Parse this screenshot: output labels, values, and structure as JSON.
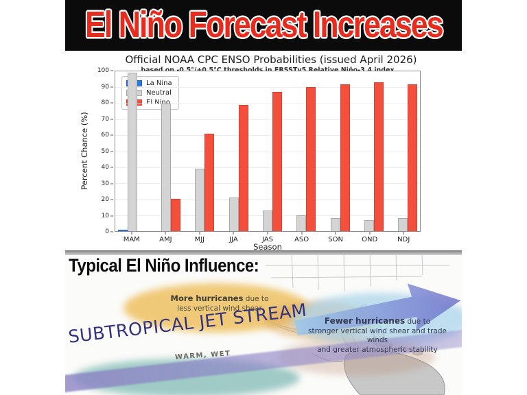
{
  "banner": {
    "title": "El Niño Forecast Increases"
  },
  "colors": {
    "banner_background": "#0b0b0b",
    "banner_red": "#e62c1e",
    "la_nina_blue": "#2b78e8",
    "neutral_gray": "#d4d4d4",
    "el_nino_red": "#f2503c",
    "jet_stream_lavender": "#8a80c4",
    "jet_text_navy": "#32327e",
    "more_hurricanes_blob": "#eec162",
    "fewer_hurricanes_blob": "#a6d2ea",
    "teal_blob": "#55a39c"
  },
  "chart_data": {
    "type": "bar",
    "title": "Official NOAA CPC ENSO Probabilities (issued April 2026)",
    "subtitle": "based on -0.5°/+0.5°C thresholds in ERSSTv5 Relative Niño-3.4 index",
    "xlabel": "Season",
    "ylabel": "Percent Chance (%)",
    "ylim": [
      0,
      100
    ],
    "yticks": [
      0,
      10,
      20,
      30,
      40,
      50,
      60,
      70,
      80,
      90,
      100
    ],
    "grid": "horizontal-faint",
    "legend_position": "upper-left",
    "categories": [
      "MAM",
      "AMJ",
      "MJJ",
      "JJA",
      "JAS",
      "ASO",
      "SON",
      "OND",
      "NDJ"
    ],
    "series": [
      {
        "name": "La Nina",
        "color": "#2b78e8",
        "edge": "#1f5fc0",
        "values": [
          1,
          0,
          0,
          0,
          0,
          0,
          0,
          0,
          0
        ]
      },
      {
        "name": "Neutral",
        "color": "#d4d4d4",
        "edge": "#a8a8a8",
        "values": [
          99,
          80,
          39,
          21,
          13,
          10,
          8,
          7,
          8
        ]
      },
      {
        "name": "El Nino",
        "color": "#f2503c",
        "edge": "#d8402e",
        "values": [
          0,
          20,
          61,
          79,
          87,
          90,
          92,
          93,
          92
        ]
      }
    ]
  },
  "map": {
    "heading": "Typical El Niño Influence:",
    "more_hurricanes": {
      "bold": "More hurricanes",
      "rest": " due to",
      "line2": "less vertical wind shear"
    },
    "fewer_hurricanes": {
      "bold": "Fewer hurricanes",
      "rest": " due to",
      "line2": "stronger vertical wind shear and trade winds",
      "line3": "and greater atmospheric stability"
    },
    "jet_stream_label": "SUBTROPICAL JET STREAM",
    "warm_wet_label": "WARM, WET"
  }
}
